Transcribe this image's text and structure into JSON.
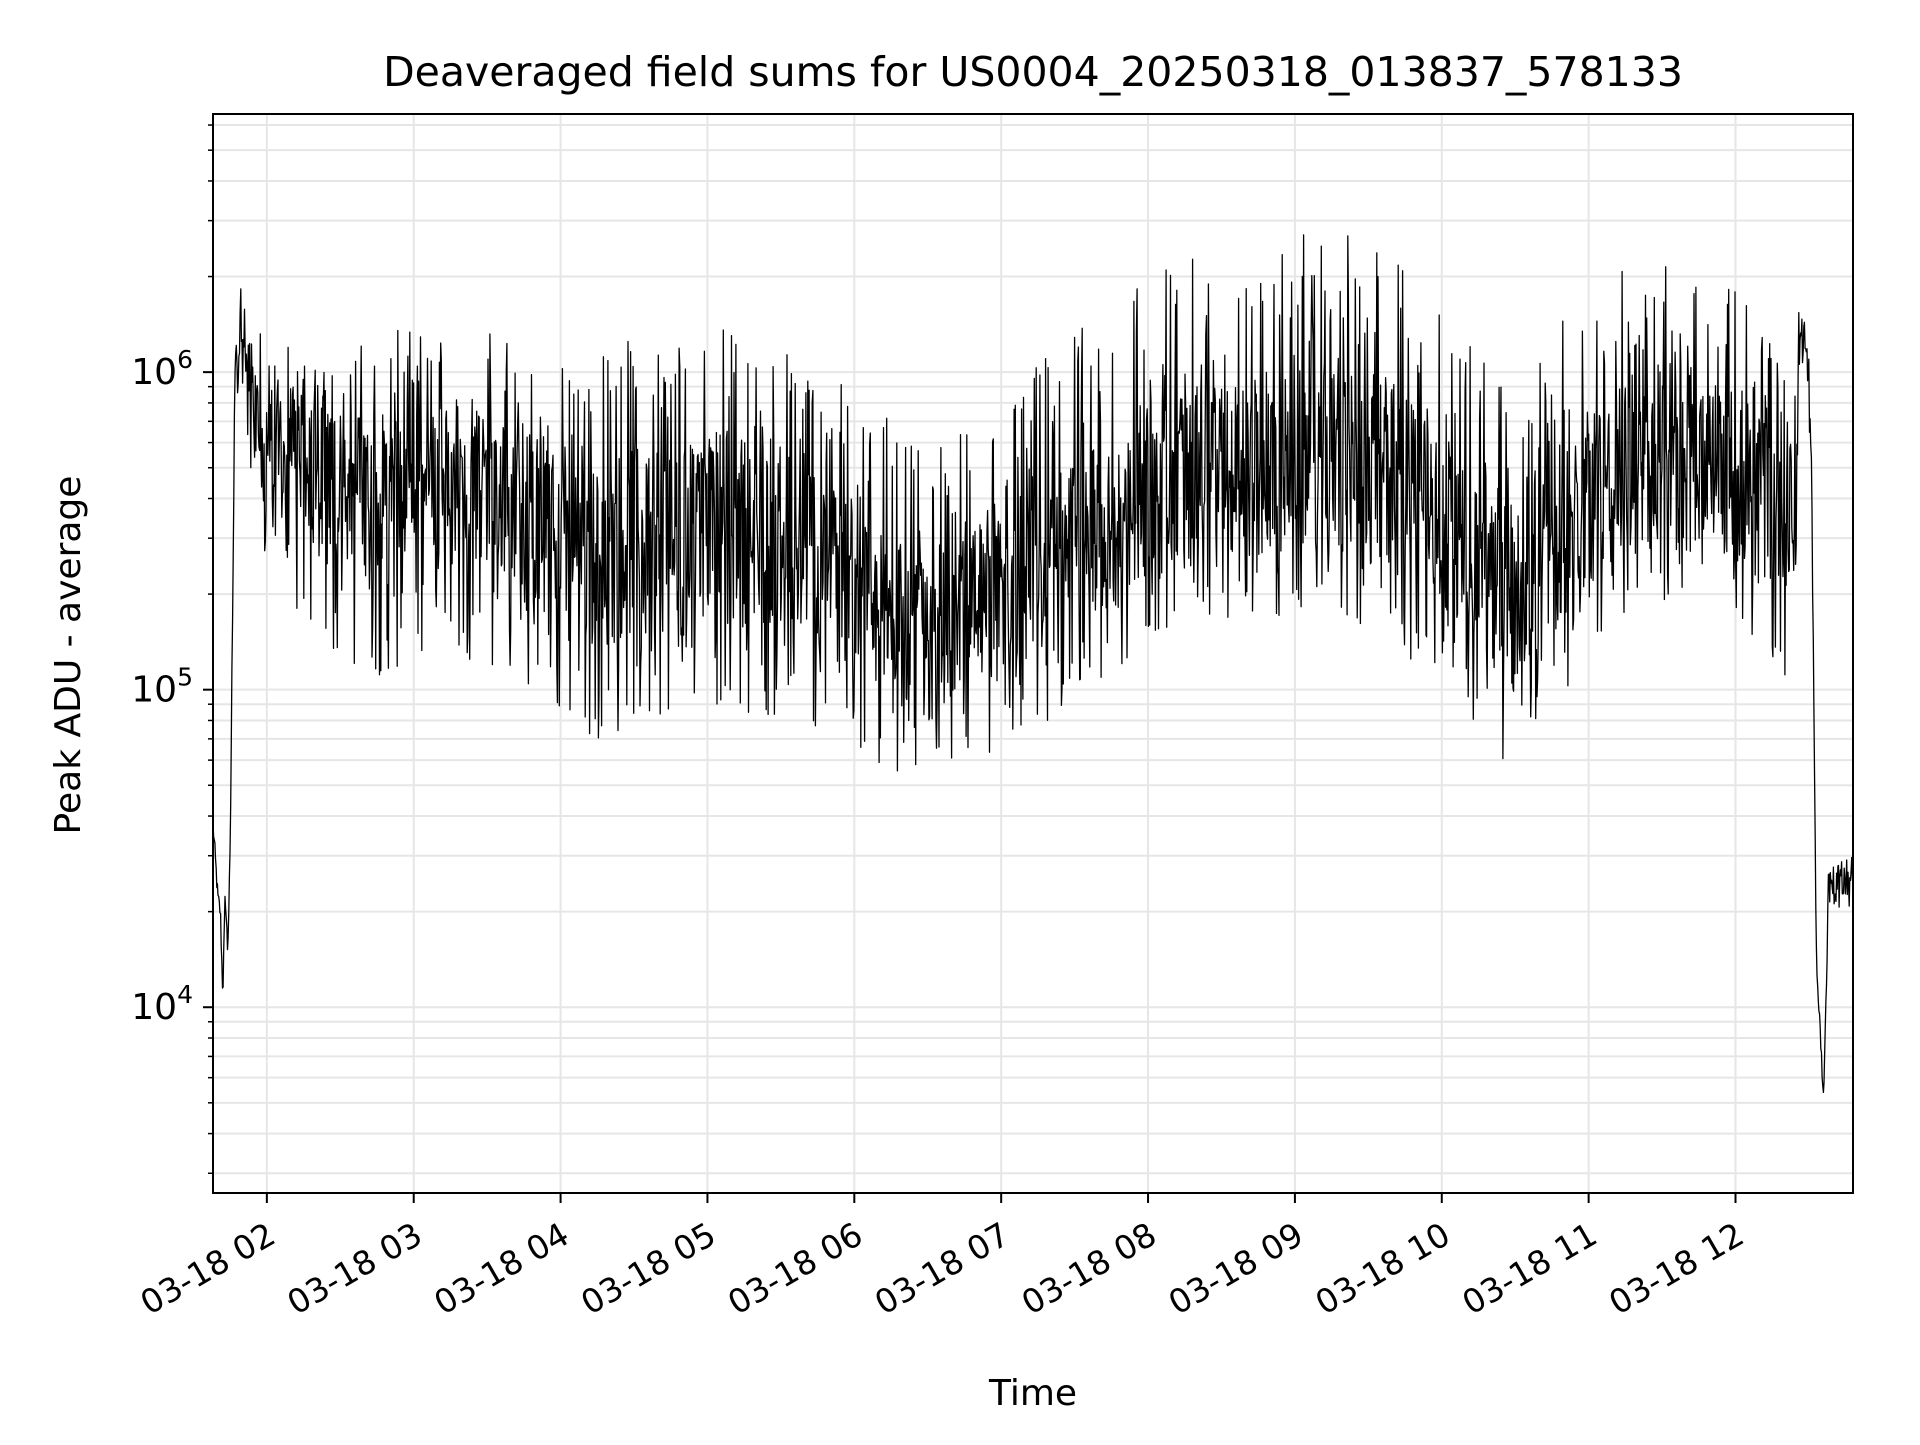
{
  "chart_data": {
    "type": "line",
    "title": "Deaveraged field sums for US0004_20250318_013837_578133",
    "xlabel": "Time",
    "ylabel": "Peak ADU - average",
    "yscale": "log",
    "ylim": [
      2600,
      6500000
    ],
    "xlim": [
      "2025-03-18 01:38:00",
      "2025-03-18 12:48:00"
    ],
    "grid": true,
    "line_color": "#000000",
    "grid_color": "#e6e6e6",
    "xticks": [
      {
        "label": "03-18 02",
        "value": "2025-03-18 02:00"
      },
      {
        "label": "03-18 03",
        "value": "2025-03-18 03:00"
      },
      {
        "label": "03-18 04",
        "value": "2025-03-18 04:00"
      },
      {
        "label": "03-18 05",
        "value": "2025-03-18 05:00"
      },
      {
        "label": "03-18 06",
        "value": "2025-03-18 06:00"
      },
      {
        "label": "03-18 07",
        "value": "2025-03-18 07:00"
      },
      {
        "label": "03-18 08",
        "value": "2025-03-18 08:00"
      },
      {
        "label": "03-18 09",
        "value": "2025-03-18 09:00"
      },
      {
        "label": "03-18 10",
        "value": "2025-03-18 10:00"
      },
      {
        "label": "03-18 11",
        "value": "2025-03-18 11:00"
      },
      {
        "label": "03-18 12",
        "value": "2025-03-18 12:00"
      }
    ],
    "yticks": [
      {
        "base": "10",
        "exp": "4",
        "value": 10000
      },
      {
        "base": "10",
        "exp": "5",
        "value": 100000
      },
      {
        "base": "10",
        "exp": "6",
        "value": 1000000
      }
    ],
    "series": [
      {
        "x": [
          "2025-03-18 01:38",
          "2025-03-18 01:40",
          "2025-03-18 01:41",
          "2025-03-18 01:42",
          "2025-03-18 01:43",
          "2025-03-18 01:44",
          "2025-03-18 01:45",
          "2025-03-18 01:46",
          "2025-03-18 01:47",
          "2025-03-18 01:49",
          "2025-03-18 01:51",
          "2025-03-18 01:53",
          "2025-03-18 01:55",
          "2025-03-18 01:58",
          "2025-03-18 02:05",
          "2025-03-18 02:15",
          "2025-03-18 02:30",
          "2025-03-18 02:45",
          "2025-03-18 03:00",
          "2025-03-18 03:15",
          "2025-03-18 03:30",
          "2025-03-18 03:45",
          "2025-03-18 04:00",
          "2025-03-18 04:15",
          "2025-03-18 04:30",
          "2025-03-18 04:45",
          "2025-03-18 05:00",
          "2025-03-18 05:15",
          "2025-03-18 05:30",
          "2025-03-18 05:45",
          "2025-03-18 06:00",
          "2025-03-18 06:15",
          "2025-03-18 06:30",
          "2025-03-18 06:45",
          "2025-03-18 07:00",
          "2025-03-18 07:15",
          "2025-03-18 07:30",
          "2025-03-18 07:45",
          "2025-03-18 08:00",
          "2025-03-18 08:15",
          "2025-03-18 08:30",
          "2025-03-18 08:45",
          "2025-03-18 09:00",
          "2025-03-18 09:15",
          "2025-03-18 09:30",
          "2025-03-18 09:45",
          "2025-03-18 10:00",
          "2025-03-18 10:15",
          "2025-03-18 10:30",
          "2025-03-18 10:45",
          "2025-03-18 11:00",
          "2025-03-18 11:15",
          "2025-03-18 11:30",
          "2025-03-18 11:45",
          "2025-03-18 12:00",
          "2025-03-18 12:10",
          "2025-03-18 12:20",
          "2025-03-18 12:24",
          "2025-03-18 12:26",
          "2025-03-18 12:27",
          "2025-03-18 12:28",
          "2025-03-18 12:29",
          "2025-03-18 12:30",
          "2025-03-18 12:31",
          "2025-03-18 12:33",
          "2025-03-18 12:36",
          "2025-03-18 12:38"
        ],
        "y": [
          38000,
          22000,
          20000,
          11000,
          23000,
          15000,
          30000,
          180000,
          900000,
          1600000,
          1300000,
          800000,
          700000,
          650000,
          600000,
          550000,
          450000,
          400000,
          450000,
          500000,
          450000,
          380000,
          300000,
          260000,
          300000,
          320000,
          340000,
          320000,
          300000,
          280000,
          220000,
          160000,
          140000,
          170000,
          190000,
          220000,
          280000,
          320000,
          420000,
          460000,
          500000,
          480000,
          520000,
          550000,
          500000,
          450000,
          380000,
          260000,
          190000,
          280000,
          420000,
          480000,
          520000,
          500000,
          480000,
          420000,
          380000,
          420000,
          1000000,
          1500000,
          1200000,
          1300000,
          900000,
          450000,
          15000,
          5000,
          25000
        ],
        "upper": [
          38000,
          22000,
          20000,
          11000,
          23000,
          15000,
          30000,
          180000,
          1500000,
          2300000,
          1900000,
          1600000,
          1400000,
          1300000,
          1300000,
          1200000,
          1200000,
          1300000,
          1400000,
          1500000,
          1400000,
          1200000,
          1100000,
          1200000,
          1300000,
          1350000,
          1400000,
          1350000,
          1250000,
          1100000,
          900000,
          700000,
          600000,
          650000,
          800000,
          1100000,
          1500000,
          1600000,
          2400000,
          2300000,
          2200000,
          2100000,
          2700000,
          2800000,
          2600000,
          2300000,
          1700000,
          1200000,
          950000,
          1300000,
          2000000,
          2300000,
          2200000,
          2000000,
          1900000,
          1600000,
          1500000,
          1600000,
          1700000,
          1800000,
          1600000,
          1600000,
          1300000,
          600000,
          15000,
          5000,
          30000
        ],
        "lower": [
          38000,
          22000,
          20000,
          11000,
          23000,
          15000,
          30000,
          180000,
          600000,
          1100000,
          800000,
          400000,
          300000,
          250000,
          200000,
          150000,
          120000,
          110000,
          120000,
          130000,
          120000,
          100000,
          80000,
          70000,
          75000,
          85000,
          90000,
          85000,
          80000,
          75000,
          65000,
          55000,
          55000,
          60000,
          65000,
          75000,
          90000,
          110000,
          150000,
          160000,
          170000,
          160000,
          170000,
          180000,
          150000,
          130000,
          100000,
          70000,
          55000,
          80000,
          140000,
          170000,
          180000,
          170000,
          160000,
          130000,
          110000,
          130000,
          700000,
          1100000,
          800000,
          1000000,
          500000,
          200000,
          15000,
          5000,
          20000
        ]
      }
    ]
  }
}
